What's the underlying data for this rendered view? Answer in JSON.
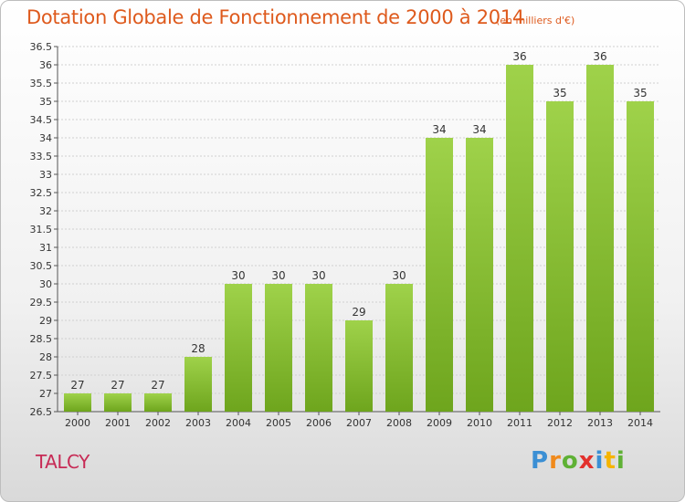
{
  "header": {
    "title": "Dotation Globale de Fonctionnement de 2000 à 2014",
    "unit": "(en milliers d'€)"
  },
  "footer": {
    "city": "TALCY",
    "logo_text": "Proxiti"
  },
  "colors": {
    "title": "#de5a1d",
    "city": "#c72a55",
    "bar_light": "#9fd24a",
    "bar_dark": "#6ea51d"
  },
  "chart_data": {
    "type": "bar",
    "title": "Dotation Globale de Fonctionnement de 2000 à 2014",
    "xlabel": "",
    "ylabel": "",
    "categories": [
      "2000",
      "2001",
      "2002",
      "2003",
      "2004",
      "2005",
      "2006",
      "2007",
      "2008",
      "2009",
      "2010",
      "2011",
      "2012",
      "2013",
      "2014"
    ],
    "values": [
      27,
      27,
      27,
      28,
      30,
      30,
      30,
      29,
      30,
      34,
      34,
      36,
      35,
      36,
      35
    ],
    "ylim": [
      26.5,
      36.5
    ],
    "yticks": [
      "26.5",
      "27",
      "27.5",
      "28",
      "28.5",
      "29",
      "29.5",
      "30",
      "30.5",
      "31",
      "31.5",
      "32",
      "32.5",
      "33",
      "33.5",
      "34",
      "34.5",
      "35",
      "35.5",
      "36",
      "36.5"
    ],
    "grid": true
  }
}
